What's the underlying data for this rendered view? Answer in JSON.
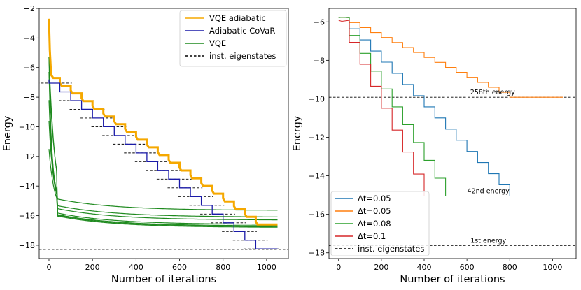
{
  "chart_data": [
    {
      "type": "line",
      "xlabel": "Number of iterations",
      "ylabel": "Energy",
      "xlim": [
        -45,
        1100
      ],
      "ylim": [
        -18.9,
        -2.0
      ],
      "xticks": [
        0,
        200,
        400,
        600,
        800,
        1000
      ],
      "yticks": [
        -18,
        -16,
        -14,
        -12,
        -10,
        -8,
        -6,
        -4,
        -2
      ],
      "legend_position": "top-right",
      "legend": [
        "VQE adiabatic",
        "Adiabatic CoVaR",
        "VQE",
        "inst. eigenstates"
      ],
      "colors": {
        "vqe_adiabatic": "#f5a800",
        "covar": "#1a1aa8",
        "vqe": "#1f8a1f",
        "eigen": "#000000"
      },
      "num_steps": 20,
      "step_iterations": 50,
      "final_iteration": 1050,
      "series": [
        {
          "name": "Adiabatic CoVaR",
          "style": "staircase",
          "start": -6.8,
          "end": -18.25,
          "first_drop": -7.05
        },
        {
          "name": "VQE adiabatic",
          "style": "staircase",
          "start": -6.7,
          "end": -16.6,
          "initial_spike": -2.7
        }
      ],
      "vqe_runs_final": [
        -15.65,
        -16.1,
        -16.3,
        -16.6,
        -16.7,
        -16.75,
        -16.8
      ],
      "vqe_runs_start": [
        -5.3,
        -6.3,
        -8.2,
        -9.6,
        -11.5
      ],
      "ground_energy": -18.28
    },
    {
      "type": "line",
      "xlabel": "Number of iterations",
      "ylabel": "Energy",
      "xlim": [
        -45,
        1110
      ],
      "ylim": [
        -18.3,
        -5.3
      ],
      "xticks": [
        0,
        200,
        400,
        600,
        800,
        1000
      ],
      "yticks": [
        -18,
        -16,
        -14,
        -12,
        -10,
        -8,
        -6
      ],
      "legend_position": "bottom-left",
      "legend": [
        "Δt=0.05",
        "Δt=0.05",
        "Δt=0.08",
        "Δt=0.1",
        "inst. eigenstates"
      ],
      "colors": [
        "#1f77b4",
        "#ff7f0e",
        "#2ca02c",
        "#d62728"
      ],
      "series": [
        {
          "name": "Δt=0.05",
          "start": -5.78,
          "end": -15.05,
          "step_iterations": 50,
          "num_steps": 16
        },
        {
          "name": "Δt=0.05",
          "start": -5.78,
          "end": -9.92,
          "step_iterations": 50,
          "num_steps": 16
        },
        {
          "name": "Δt=0.08",
          "start": -5.78,
          "end": -15.05,
          "step_iterations": 50,
          "num_steps": 10
        },
        {
          "name": "Δt=0.1",
          "start": -5.92,
          "end": -15.05,
          "step_iterations": 50,
          "num_steps": 8
        }
      ],
      "annotations": [
        {
          "text": "258th energy",
          "y": -9.92,
          "x": 720
        },
        {
          "text": "42nd energy",
          "y": -15.05,
          "x": 700
        },
        {
          "text": "1st energy",
          "y": -17.62,
          "x": 700
        }
      ],
      "reference_lines": [
        -9.92,
        -15.05,
        -17.62
      ]
    }
  ]
}
